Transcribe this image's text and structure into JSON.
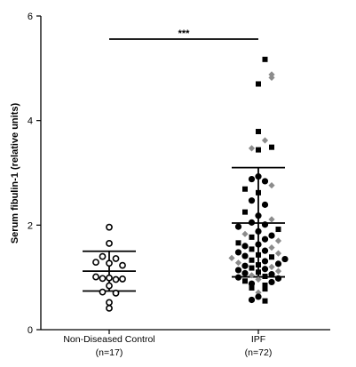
{
  "chart_data": {
    "type": "scatter",
    "ylabel": "Serum fibulin-1 (relative units)",
    "ylim": [
      0,
      6
    ],
    "yticks": [
      0,
      2,
      4,
      6
    ],
    "significance": "***",
    "groups": [
      {
        "label": "Non-Diseased Control",
        "n_label": "(n=17)",
        "mean": 1.12,
        "sd_upper": 1.5,
        "sd_lower": 0.74,
        "points": [
          {
            "v": 1.96,
            "m": "open-circle",
            "j": 0
          },
          {
            "v": 1.65,
            "m": "open-circle",
            "j": 0
          },
          {
            "v": 1.4,
            "m": "open-circle",
            "j": -1
          },
          {
            "v": 1.36,
            "m": "open-circle",
            "j": 1
          },
          {
            "v": 1.29,
            "m": "open-circle",
            "j": -2
          },
          {
            "v": 1.27,
            "m": "open-circle",
            "j": 0
          },
          {
            "v": 1.23,
            "m": "open-circle",
            "j": 2
          },
          {
            "v": 1.01,
            "m": "open-circle",
            "j": -2
          },
          {
            "v": 0.98,
            "m": "open-circle",
            "j": -1
          },
          {
            "v": 0.99,
            "m": "open-circle",
            "j": 0
          },
          {
            "v": 0.96,
            "m": "open-circle",
            "j": 1
          },
          {
            "v": 0.97,
            "m": "open-circle",
            "j": 2
          },
          {
            "v": 0.84,
            "m": "open-circle",
            "j": 0
          },
          {
            "v": 0.72,
            "m": "open-circle",
            "j": -1
          },
          {
            "v": 0.7,
            "m": "open-circle",
            "j": 1
          },
          {
            "v": 0.52,
            "m": "open-circle",
            "j": 0
          },
          {
            "v": 0.41,
            "m": "open-circle",
            "j": 0
          }
        ]
      },
      {
        "label": "IPF",
        "n_label": "(n=72)",
        "mean": 2.04,
        "sd_upper": 3.1,
        "sd_lower": 1.01,
        "points": [
          {
            "v": 5.17,
            "m": "square",
            "j": 1
          },
          {
            "v": 4.88,
            "m": "diamond",
            "j": 2
          },
          {
            "v": 4.82,
            "m": "diamond",
            "j": 2
          },
          {
            "v": 4.7,
            "m": "square",
            "j": 0
          },
          {
            "v": 3.79,
            "m": "square",
            "j": 0
          },
          {
            "v": 3.62,
            "m": "diamond",
            "j": 1
          },
          {
            "v": 3.49,
            "m": "square",
            "j": 2
          },
          {
            "v": 3.47,
            "m": "diamond",
            "j": -1
          },
          {
            "v": 3.44,
            "m": "square",
            "j": 0
          },
          {
            "v": 2.93,
            "m": "circle",
            "j": 0
          },
          {
            "v": 2.88,
            "m": "circle",
            "j": -1
          },
          {
            "v": 2.84,
            "m": "circle",
            "j": 1
          },
          {
            "v": 2.76,
            "m": "diamond",
            "j": 2
          },
          {
            "v": 2.69,
            "m": "square",
            "j": -2
          },
          {
            "v": 2.62,
            "m": "square",
            "j": 0
          },
          {
            "v": 2.47,
            "m": "circle",
            "j": -1
          },
          {
            "v": 2.39,
            "m": "circle",
            "j": 1
          },
          {
            "v": 2.25,
            "m": "square",
            "j": -2
          },
          {
            "v": 2.18,
            "m": "circle",
            "j": 0
          },
          {
            "v": 2.11,
            "m": "diamond",
            "j": 2
          },
          {
            "v": 2.05,
            "m": "circle",
            "j": -1
          },
          {
            "v": 2.01,
            "m": "circle",
            "j": 1
          },
          {
            "v": 1.97,
            "m": "circle",
            "j": -3
          },
          {
            "v": 1.92,
            "m": "square",
            "j": 3
          },
          {
            "v": 1.88,
            "m": "circle",
            "j": 0
          },
          {
            "v": 1.83,
            "m": "diamond",
            "j": -2
          },
          {
            "v": 1.8,
            "m": "circle",
            "j": 2
          },
          {
            "v": 1.77,
            "m": "square",
            "j": -1
          },
          {
            "v": 1.73,
            "m": "circle",
            "j": 1
          },
          {
            "v": 1.7,
            "m": "diamond",
            "j": 3
          },
          {
            "v": 1.66,
            "m": "square",
            "j": -3
          },
          {
            "v": 1.63,
            "m": "circle",
            "j": 0
          },
          {
            "v": 1.6,
            "m": "circle",
            "j": -2
          },
          {
            "v": 1.57,
            "m": "diamond",
            "j": 2
          },
          {
            "v": 1.54,
            "m": "square",
            "j": -1
          },
          {
            "v": 1.51,
            "m": "circle",
            "j": 1
          },
          {
            "v": 1.48,
            "m": "circle",
            "j": -3
          },
          {
            "v": 1.46,
            "m": "diamond",
            "j": 3
          },
          {
            "v": 1.43,
            "m": "square",
            "j": 0
          },
          {
            "v": 1.41,
            "m": "circle",
            "j": -2
          },
          {
            "v": 1.39,
            "m": "square",
            "j": 2
          },
          {
            "v": 1.37,
            "m": "diamond",
            "j": -4
          },
          {
            "v": 1.35,
            "m": "circle",
            "j": 4
          },
          {
            "v": 1.33,
            "m": "square",
            "j": -1
          },
          {
            "v": 1.31,
            "m": "circle",
            "j": 1
          },
          {
            "v": 1.28,
            "m": "diamond",
            "j": -3
          },
          {
            "v": 1.26,
            "m": "circle",
            "j": 3
          },
          {
            "v": 1.24,
            "m": "square",
            "j": 0
          },
          {
            "v": 1.22,
            "m": "circle",
            "j": -2
          },
          {
            "v": 1.2,
            "m": "diamond",
            "j": 2
          },
          {
            "v": 1.18,
            "m": "square",
            "j": -1
          },
          {
            "v": 1.16,
            "m": "circle",
            "j": 1
          },
          {
            "v": 1.14,
            "m": "circle",
            "j": -3
          },
          {
            "v": 1.12,
            "m": "diamond",
            "j": 3
          },
          {
            "v": 1.1,
            "m": "square",
            "j": 0
          },
          {
            "v": 1.08,
            "m": "circle",
            "j": -2
          },
          {
            "v": 1.06,
            "m": "circle",
            "j": 2
          },
          {
            "v": 1.04,
            "m": "diamond",
            "j": -1
          },
          {
            "v": 1.02,
            "m": "square",
            "j": 1
          },
          {
            "v": 1.0,
            "m": "circle",
            "j": -3
          },
          {
            "v": 0.98,
            "m": "circle",
            "j": 3
          },
          {
            "v": 0.96,
            "m": "diamond",
            "j": 0
          },
          {
            "v": 0.93,
            "m": "square",
            "j": -2
          },
          {
            "v": 0.91,
            "m": "circle",
            "j": 2
          },
          {
            "v": 0.88,
            "m": "circle",
            "j": -1
          },
          {
            "v": 0.85,
            "m": "square",
            "j": 1
          },
          {
            "v": 0.8,
            "m": "square",
            "j": -1
          },
          {
            "v": 0.78,
            "m": "square",
            "j": 1
          },
          {
            "v": 0.71,
            "m": "diamond",
            "j": 0
          },
          {
            "v": 0.63,
            "m": "circle",
            "j": 0
          },
          {
            "v": 0.57,
            "m": "circle",
            "j": -1
          },
          {
            "v": 0.55,
            "m": "square",
            "j": 1
          }
        ]
      }
    ],
    "colors": {
      "axis": "#000000",
      "circle": "#000000",
      "square": "#000000",
      "diamond": "#8c8c8c"
    }
  }
}
